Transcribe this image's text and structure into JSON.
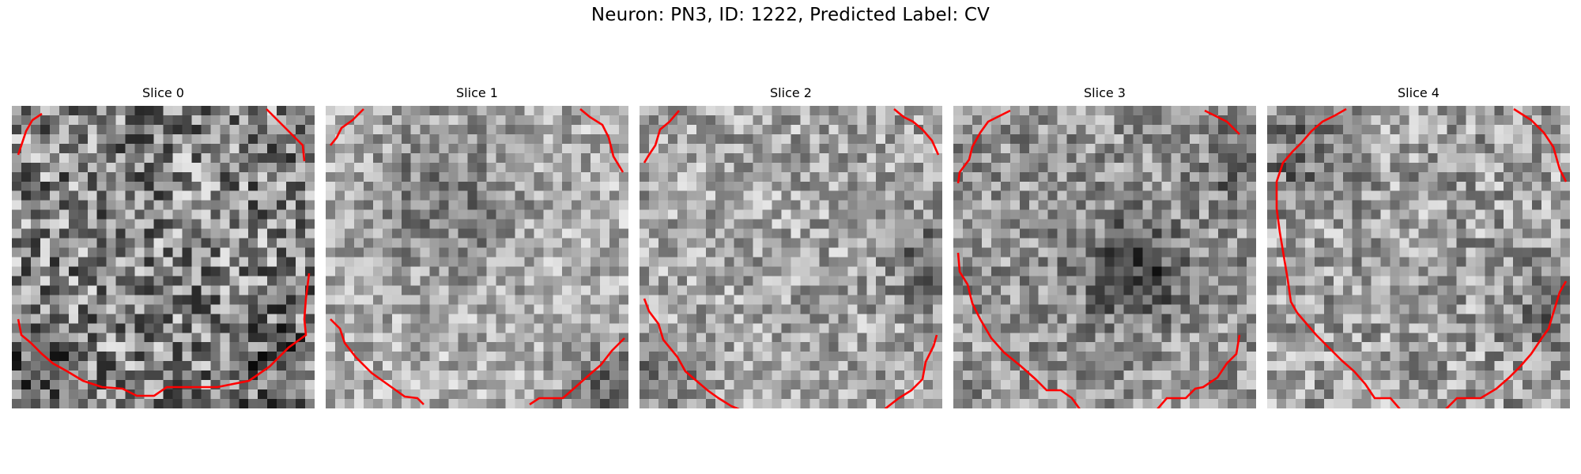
{
  "figure": {
    "title": "Neuron: PN3, ID: 1222, Predicted Label: CV"
  },
  "slices": [
    {
      "title": "Slice 0"
    },
    {
      "title": "Slice 1"
    },
    {
      "title": "Slice 2"
    },
    {
      "title": "Slice 3"
    },
    {
      "title": "Slice 4"
    }
  ],
  "colors": {
    "contour": "#ff0000",
    "colormap": "gray"
  }
}
